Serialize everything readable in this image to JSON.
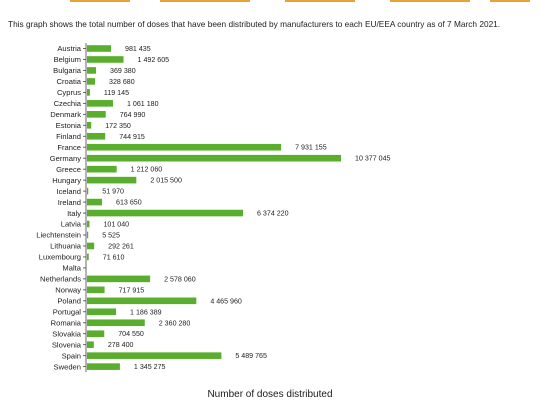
{
  "intro_text": "This graph shows the total number of doses that have been distributed by manufacturers to each EU/EEA country as of 7 March 2021.",
  "colors": {
    "bar": "#5aae2e",
    "axis": "#444444",
    "top_strip": "#e8a23a"
  },
  "chart_data": {
    "type": "bar",
    "orientation": "horizontal",
    "title": "",
    "xlabel": "Number of doses distributed",
    "ylabel": "",
    "xlim": [
      0,
      10377045
    ],
    "grid": false,
    "categories": [
      "Austria",
      "Belgium",
      "Bulgaria",
      "Croatia",
      "Cyprus",
      "Czechia",
      "Denmark",
      "Estonia",
      "Finland",
      "France",
      "Germany",
      "Greece",
      "Hungary",
      "Iceland",
      "Ireland",
      "Italy",
      "Latvia",
      "Liechtenstein",
      "Lithuania",
      "Luxembourg",
      "Malta",
      "Netherlands",
      "Norway",
      "Poland",
      "Portugal",
      "Romania",
      "Slovakia",
      "Slovenia",
      "Spain",
      "Sweden"
    ],
    "values": [
      981435,
      1492605,
      369380,
      328680,
      119145,
      1061180,
      764990,
      172350,
      744915,
      7931155,
      10377045,
      1212060,
      2015500,
      51970,
      613650,
      6374220,
      101040,
      5525,
      292261,
      71610,
      null,
      2578060,
      717915,
      4465960,
      1186389,
      2360280,
      704550,
      278400,
      5489765,
      1345275
    ],
    "data_labels": [
      "981 435",
      "1 492 605",
      "369 380",
      "328 680",
      "119 145",
      "1 061 180",
      "764 990",
      "172 350",
      "744 915",
      "7 931 155",
      "10 377 045",
      "1 212 060",
      "2 015 500",
      "51 970",
      "613 650",
      "6 374 220",
      "101 040",
      "5 525",
      "292 261",
      "71 610",
      "",
      "2 578 060",
      "717 915",
      "4 465 960",
      "1 186 389",
      "2 360 280",
      "704 550",
      "278 400",
      "5 489 765",
      "1 345 275"
    ]
  }
}
